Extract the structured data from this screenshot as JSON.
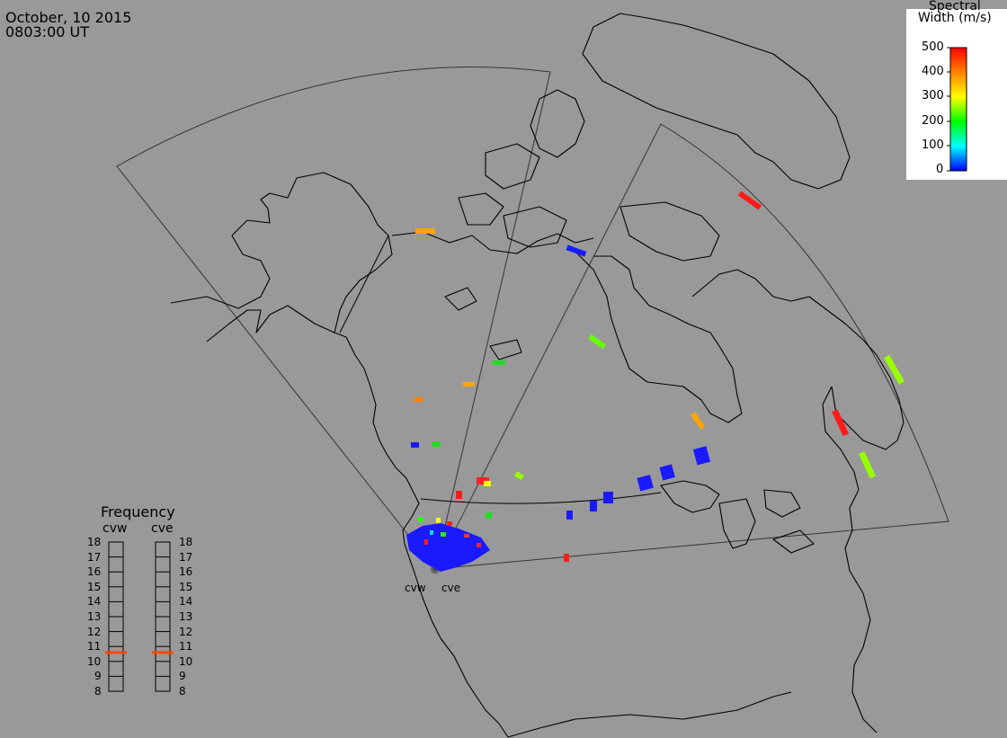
{
  "header": {
    "date": "October, 10 2015",
    "time": "0803:00 UT"
  },
  "colorbar": {
    "title_line1": "Spectral",
    "title_line2": "Width (m/s)",
    "ticks": [
      "500",
      "400",
      "300",
      "200",
      "100",
      "0"
    ],
    "colors": [
      "#ff0000",
      "#ff8000",
      "#ffff00",
      "#00ff00",
      "#00ffff",
      "#0000ff"
    ]
  },
  "frequency_panel": {
    "title": "Frequency",
    "left_label": "cvw",
    "right_label": "cve",
    "ticks": [
      "18",
      "17",
      "16",
      "15",
      "14",
      "13",
      "12",
      "11",
      "10",
      "9",
      "8"
    ],
    "cvw_value": 10.6,
    "cve_value": 10.6,
    "marker_color": "#ff4500"
  },
  "radars": {
    "west_label": "cvw",
    "east_label": "cve"
  },
  "colors": {
    "background": "#999999",
    "coastline": "#000000",
    "fov": "#333333"
  }
}
